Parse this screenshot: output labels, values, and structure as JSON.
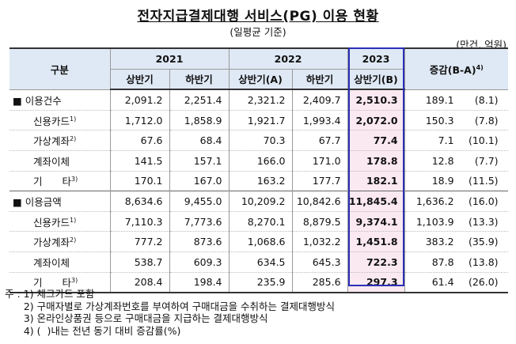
{
  "title": "전자지급결제대행 서비스(PG) 이용 현황",
  "subtitle": "(일평균 기준)",
  "unit": "(만건, 억원)",
  "header": {
    "category": "구분",
    "year_2021": "2021",
    "year_2022": "2022",
    "year_2023": "2023",
    "change": "증감(B-A)",
    "change_sup": "4)",
    "h1_2021": "상반기",
    "h2_2021": "하반기",
    "h1_2022": "상반기(A)",
    "h2_2022": "하반기",
    "h1_2023": "상반기(B)"
  },
  "rows": [
    {
      "label": "■ 이용건수",
      "sup": "",
      "v1": "2,091.2",
      "v2": "2,251.4",
      "v3": "2,321.2",
      "v4": "2,409.7",
      "v5": "2,510.3",
      "chg": "189.1",
      "pct": "(8.1)"
    },
    {
      "label": "신용카드",
      "sup": "1)",
      "v1": "1,712.0",
      "v2": "1,858.9",
      "v3": "1,921.7",
      "v4": "1,993.4",
      "v5": "2,072.0",
      "chg": "150.3",
      "pct": "(7.8)"
    },
    {
      "label": "가상계좌",
      "sup": "2)",
      "v1": "67.6",
      "v2": "68.4",
      "v3": "70.3",
      "v4": "67.7",
      "v5": "77.4",
      "chg": "7.1",
      "pct": "(10.1)"
    },
    {
      "label": "계좌이체",
      "sup": "",
      "v1": "141.5",
      "v2": "157.1",
      "v3": "166.0",
      "v4": "171.0",
      "v5": "178.8",
      "chg": "12.8",
      "pct": "(7.7)"
    },
    {
      "label": "기　　타",
      "sup": "3)",
      "v1": "170.1",
      "v2": "167.0",
      "v3": "163.2",
      "v4": "177.7",
      "v5": "182.1",
      "chg": "18.9",
      "pct": "(11.5)"
    },
    {
      "label": "■ 이용금액",
      "sup": "",
      "v1": "8,634.6",
      "v2": "9,455.0",
      "v3": "10,209.2",
      "v4": "10,842.6",
      "v5": "11,845.4",
      "chg": "1,636.2",
      "pct": "(16.0)"
    },
    {
      "label": "신용카드",
      "sup": "1)",
      "v1": "7,110.3",
      "v2": "7,773.6",
      "v3": "8,270.1",
      "v4": "8,879.5",
      "v5": "9,374.1",
      "chg": "1,103.9",
      "pct": "(13.3)"
    },
    {
      "label": "가상계좌",
      "sup": "2)",
      "v1": "777.2",
      "v2": "873.6",
      "v3": "1,068.6",
      "v4": "1,032.2",
      "v5": "1,451.8",
      "chg": "383.2",
      "pct": "(35.9)"
    },
    {
      "label": "계좌이체",
      "sup": "",
      "v1": "538.7",
      "v2": "609.3",
      "v3": "634.5",
      "v4": "645.3",
      "v5": "722.3",
      "chg": "87.8",
      "pct": "(13.8)"
    },
    {
      "label": "기　　타",
      "sup": "3)",
      "v1": "208.4",
      "v2": "198.4",
      "v3": "235.9",
      "v4": "285.6",
      "v5": "297.3",
      "chg": "61.4",
      "pct": "(26.0)"
    }
  ],
  "notes": [
    "주 : 1) 체크카드 포함",
    "      2) 구매자별로 가상계좌번호를 부여하여 구매대금을 수취하는 결제대행방식",
    "      3) 온라인상품권 등으로 구매대금을 지급하는 결제대행방식",
    "      4) (  )내는 전년 동기 대비 증감률(%)"
  ]
}
